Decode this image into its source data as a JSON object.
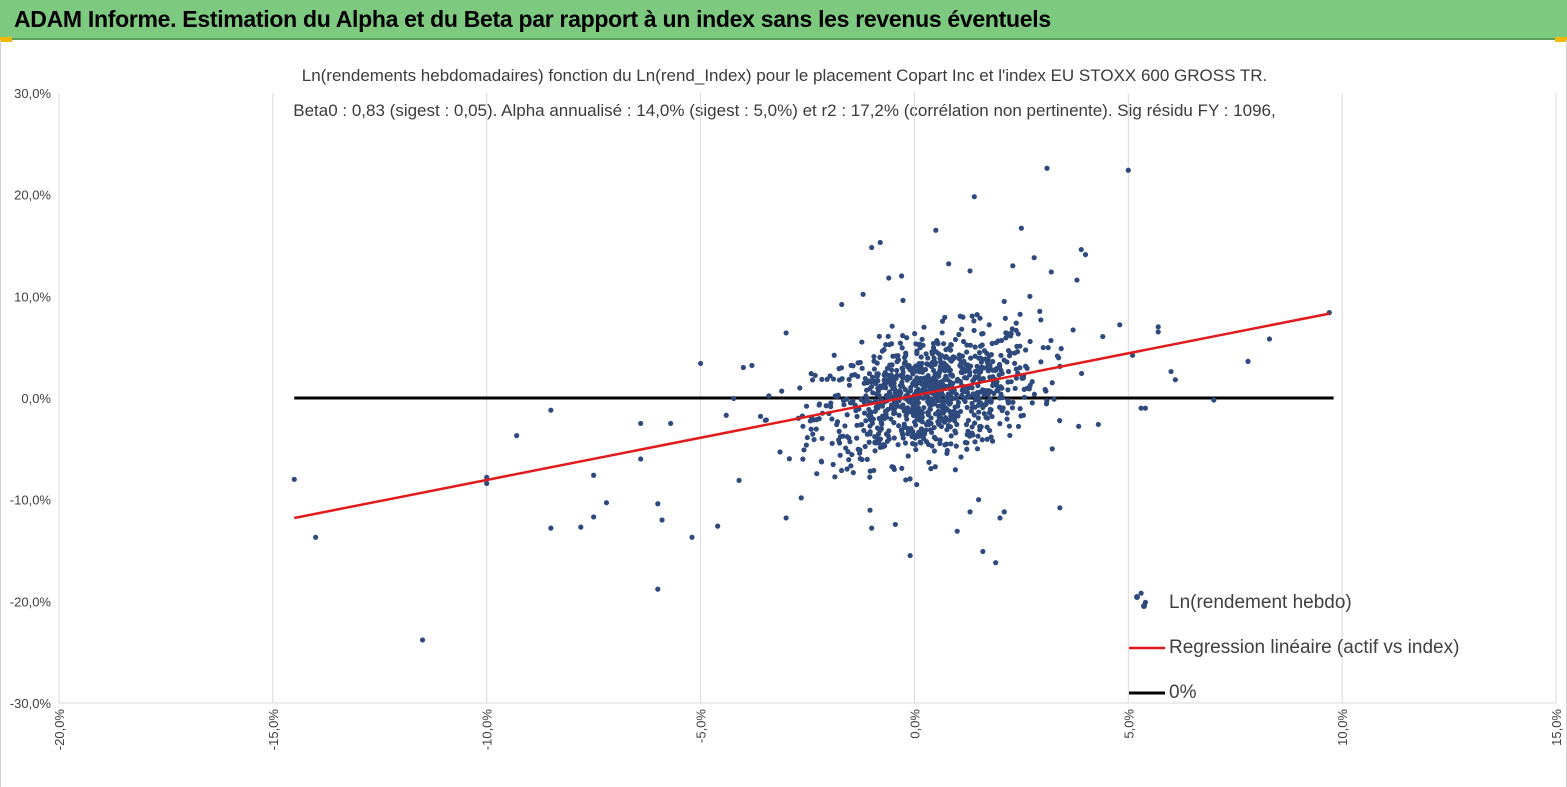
{
  "header": {
    "title": "ADAM Informe. Estimation du Alpha et du Beta par rapport à un index sans les revenus éventuels",
    "bg_color": "#7dc97f",
    "corner_color": "#f2b800"
  },
  "chart_data": {
    "type": "scatter",
    "title": "Ln(rendements hebdomadaires) fonction du Ln(rend_Index) pour le placement Copart Inc et l'index EU STOXX 600 GROSS TR.",
    "subtitle": "Beta0 : 0,83 (sigest : 0,05).  Alpha annualisé : 14,0% (sigest : 5,0%) et r2 : 17,2% (corrélation non pertinente). Sig résidu FY : 1096,",
    "xlabel": "",
    "ylabel": "",
    "xlim": [
      -0.2,
      0.15
    ],
    "ylim": [
      -0.3,
      0.3
    ],
    "x_ticks": [
      -0.2,
      -0.15,
      -0.1,
      -0.05,
      0.0,
      0.05,
      0.1,
      0.15
    ],
    "x_tick_labels": [
      "-20,0%",
      "-15,0%",
      "-10,0%",
      "-5,0%",
      "0,0%",
      "5,0%",
      "10,0%",
      "15,0%"
    ],
    "y_ticks": [
      0.3,
      0.2,
      0.1,
      0.0,
      -0.1,
      -0.2,
      -0.3
    ],
    "y_tick_labels": [
      "30,0%",
      "20,0%",
      "10,0%",
      "0,0%",
      "-10,0%",
      "-20,0%",
      "-30,0%"
    ],
    "grid": "vertical",
    "legend_position": "bottom-right",
    "series": [
      {
        "name": "Ln(rendement hebdo)",
        "kind": "scatter",
        "color": "#2e4a7d",
        "points": [
          [
            -0.145,
            -0.08
          ],
          [
            -0.14,
            -0.137
          ],
          [
            -0.115,
            -0.238
          ],
          [
            -0.1,
            -0.078
          ],
          [
            -0.1,
            -0.084
          ],
          [
            -0.093,
            -0.037
          ],
          [
            -0.085,
            -0.012
          ],
          [
            -0.085,
            -0.128
          ],
          [
            -0.078,
            -0.127
          ],
          [
            -0.075,
            -0.117
          ],
          [
            -0.075,
            -0.076
          ],
          [
            -0.072,
            -0.103
          ],
          [
            -0.064,
            -0.06
          ],
          [
            -0.064,
            -0.025
          ],
          [
            -0.06,
            -0.188
          ],
          [
            -0.06,
            -0.104
          ],
          [
            -0.059,
            -0.12
          ],
          [
            -0.057,
            -0.025
          ],
          [
            -0.052,
            -0.137
          ],
          [
            -0.05,
            0.034
          ],
          [
            -0.046,
            -0.126
          ],
          [
            -0.044,
            -0.017
          ],
          [
            -0.041,
            -0.081
          ],
          [
            -0.04,
            0.03
          ],
          [
            -0.038,
            0.032
          ],
          [
            -0.03,
            -0.118
          ],
          [
            -0.03,
            0.064
          ],
          [
            -0.017,
            0.092
          ],
          [
            -0.012,
            0.102
          ],
          [
            -0.01,
            -0.128
          ],
          [
            -0.008,
            0.153
          ],
          [
            -0.01,
            0.148
          ],
          [
            -0.006,
            0.118
          ],
          [
            -0.003,
            0.12
          ],
          [
            -0.001,
            -0.155
          ],
          [
            0.005,
            0.165
          ],
          [
            0.008,
            0.132
          ],
          [
            0.01,
            -0.131
          ],
          [
            0.013,
            0.125
          ],
          [
            0.013,
            -0.112
          ],
          [
            0.014,
            0.198
          ],
          [
            0.015,
            -0.1
          ],
          [
            0.016,
            -0.151
          ],
          [
            0.019,
            -0.162
          ],
          [
            0.02,
            -0.118
          ],
          [
            0.021,
            -0.112
          ],
          [
            0.021,
            0.095
          ],
          [
            0.023,
            0.13
          ],
          [
            0.025,
            0.167
          ],
          [
            0.027,
            0.1
          ],
          [
            0.028,
            0.138
          ],
          [
            0.031,
            0.226
          ],
          [
            0.032,
            0.124
          ],
          [
            0.034,
            -0.108
          ],
          [
            0.038,
            0.116
          ],
          [
            0.039,
            0.146
          ],
          [
            0.04,
            0.141
          ],
          [
            0.043,
            -0.026
          ],
          [
            0.048,
            0.072
          ],
          [
            0.05,
            0.224
          ],
          [
            0.051,
            0.042
          ],
          [
            0.053,
            -0.01
          ],
          [
            0.054,
            -0.01
          ],
          [
            0.053,
            -0.192
          ],
          [
            0.054,
            -0.201
          ],
          [
            0.057,
            0.065
          ],
          [
            0.057,
            0.07
          ],
          [
            0.06,
            0.026
          ],
          [
            0.061,
            0.018
          ],
          [
            0.07,
            -0.002
          ],
          [
            0.078,
            0.036
          ],
          [
            0.083,
            0.058
          ],
          [
            0.097,
            0.084
          ]
        ]
      },
      {
        "name": "Regression linéaire (actif vs index)",
        "kind": "line",
        "color": "#e31a1c",
        "x": [
          -0.145,
          0.097
        ],
        "y": [
          -0.118,
          0.083
        ]
      },
      {
        "name": "0%",
        "kind": "line",
        "color": "#000000",
        "x": [
          -0.145,
          0.098
        ],
        "y": [
          0.0,
          0.0
        ]
      }
    ]
  }
}
